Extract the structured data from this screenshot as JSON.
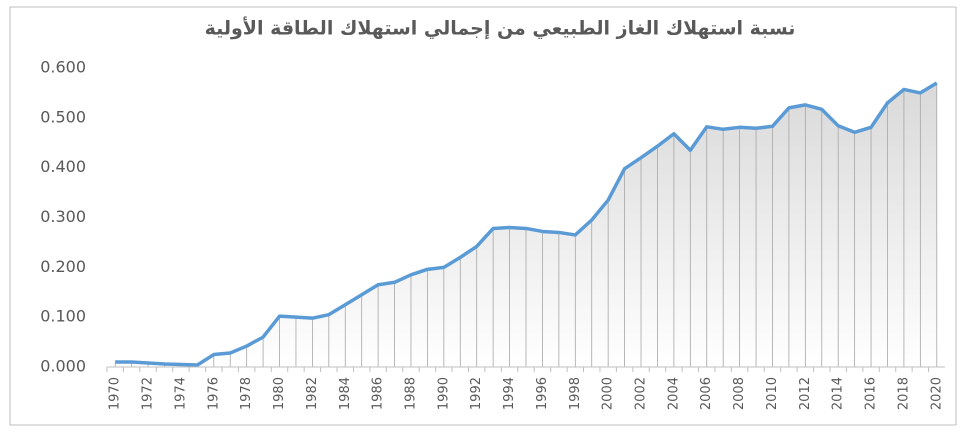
{
  "chart_data": {
    "type": "line",
    "title": "نسبة استهلاك الغاز الطبيعي من إجمالي استهلاك الطاقة الأولية",
    "categories": [
      "1970",
      null,
      "1972",
      null,
      "1974",
      null,
      "1976",
      null,
      "1978",
      null,
      "1980",
      null,
      "1982",
      null,
      "1984",
      null,
      "1986",
      null,
      "1988",
      null,
      "1990",
      null,
      "1992",
      null,
      "1994",
      null,
      "1996",
      null,
      "1998",
      null,
      "2000",
      null,
      "2002",
      null,
      "2004",
      null,
      "2006",
      null,
      "2008",
      null,
      "2010",
      null,
      "2012",
      null,
      "2014",
      null,
      "2016",
      null,
      "2018",
      null,
      "2020"
    ],
    "series": [
      {
        "color": "#5b9bd5",
        "values": [
          0.01,
          0.01,
          0.008,
          0.006,
          0.005,
          0.004,
          0.025,
          0.028,
          0.042,
          0.06,
          0.102,
          0.1,
          0.098,
          0.105,
          0.125,
          0.145,
          0.165,
          0.17,
          0.185,
          0.196,
          0.2,
          0.22,
          0.242,
          0.278,
          0.28,
          0.278,
          0.272,
          0.27,
          0.265,
          0.295,
          0.335,
          0.398,
          0.42,
          0.443,
          0.468,
          0.435,
          0.482,
          0.477,
          0.481,
          0.479,
          0.483,
          0.52,
          0.526,
          0.517,
          0.484,
          0.471,
          0.481,
          0.53,
          0.557,
          0.55,
          0.57
        ]
      }
    ],
    "ylim": [
      0,
      0.6
    ],
    "yticks": [
      {
        "value": 0,
        "label": "0.000"
      },
      {
        "value": 0.1,
        "label": "0.100"
      },
      {
        "value": 0.2,
        "label": "0.200"
      },
      {
        "value": 0.3,
        "label": "0.300"
      },
      {
        "value": 0.4,
        "label": "0.400"
      },
      {
        "value": 0.5,
        "label": "0.500"
      },
      {
        "value": 0.6,
        "label": "0.600"
      }
    ],
    "drop_lines": true
  }
}
